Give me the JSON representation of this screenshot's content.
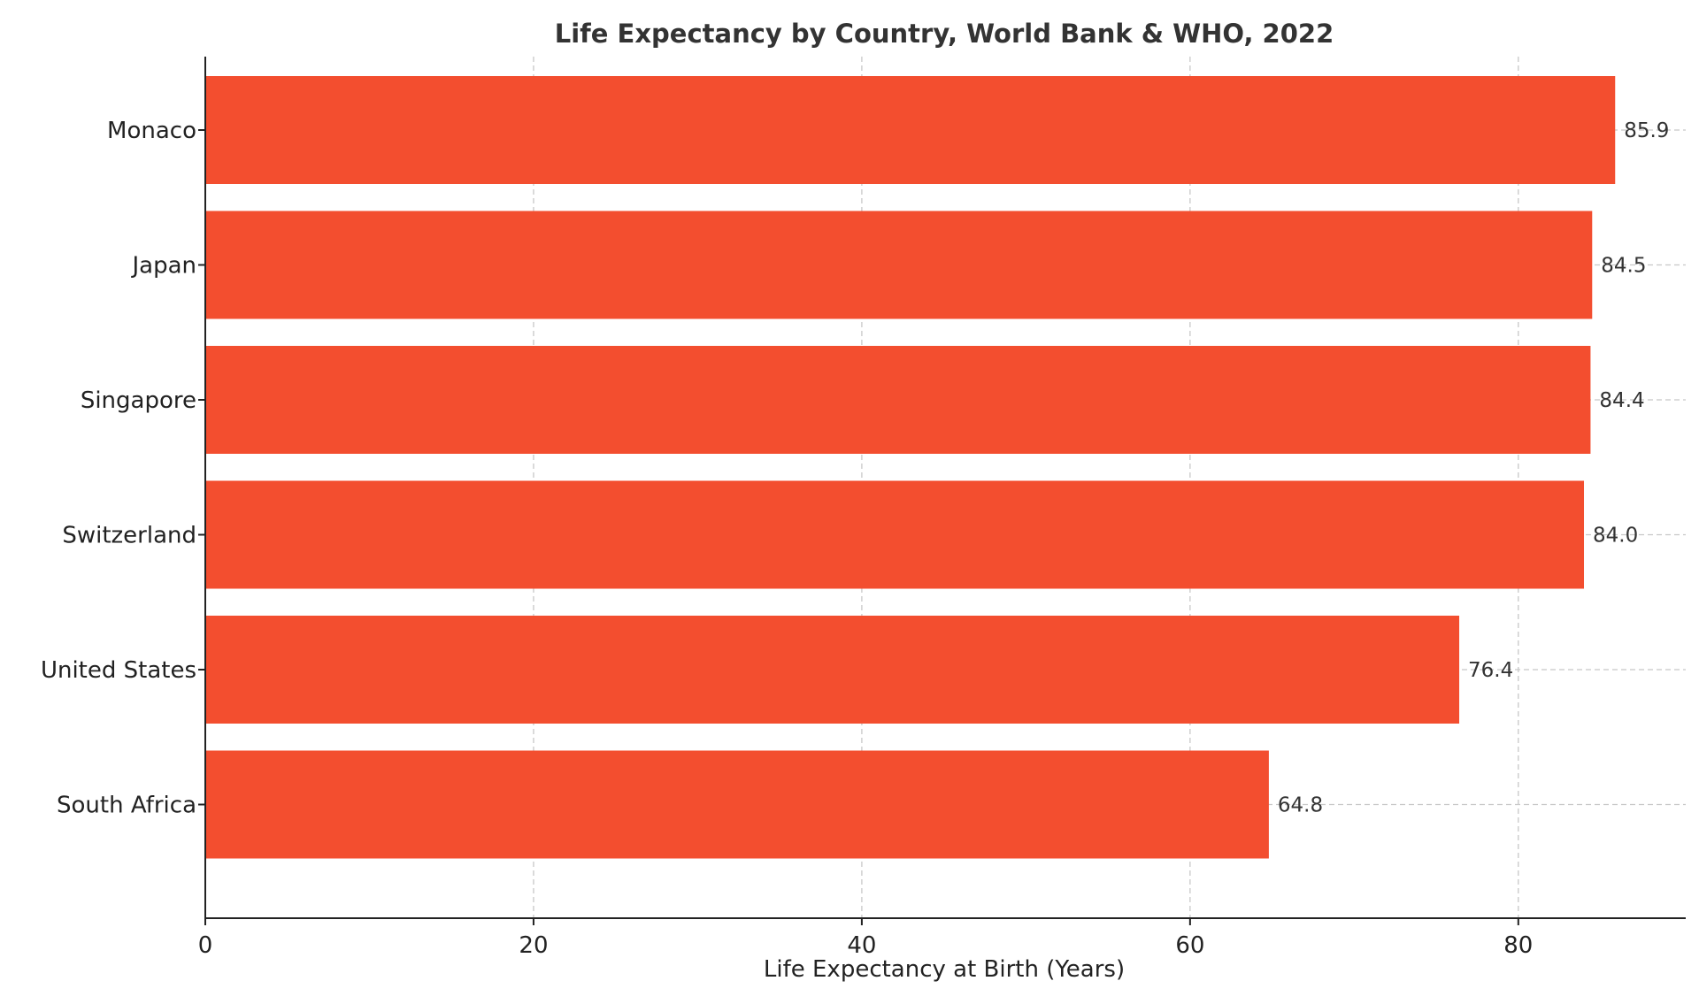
{
  "chart_data": {
    "type": "bar",
    "orientation": "horizontal",
    "title": "Life Expectancy by Country, World Bank & WHO, 2022",
    "xlabel": "Life Expectancy at Birth (Years)",
    "ylabel": "",
    "categories": [
      "Monaco",
      "Japan",
      "Singapore",
      "Switzerland",
      "United States",
      "South Africa"
    ],
    "values": [
      85.9,
      84.5,
      84.4,
      84.0,
      76.4,
      64.8
    ],
    "value_labels": [
      "85.9",
      "84.5",
      "84.4",
      "84.0",
      "76.4",
      "64.8"
    ],
    "xlim": [
      0,
      90.2
    ],
    "xticks": [
      0,
      20,
      40,
      60,
      80
    ],
    "xtick_labels": [
      "0",
      "20",
      "40",
      "60",
      "80"
    ],
    "grid": true,
    "bar_color": "#f34e2f"
  }
}
